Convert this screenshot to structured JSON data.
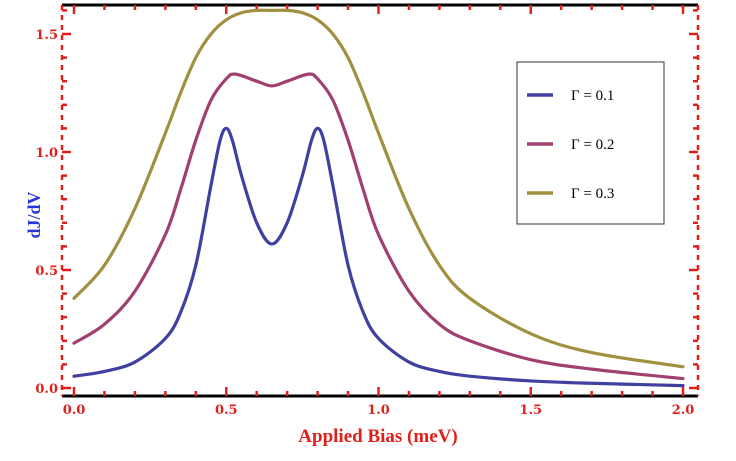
{
  "chart_data": {
    "type": "line",
    "title": "",
    "xlabel": "Applied Bias  (meV)",
    "ylabel": "dJ/dV",
    "xlim": [
      0.0,
      2.0
    ],
    "ylim": [
      0.0,
      1.65
    ],
    "x_ticks": [
      "0.0",
      "0.5",
      "1.0",
      "1.5",
      "2.0"
    ],
    "y_ticks": [
      "0.0",
      "0.5",
      "1.0",
      "1.5"
    ],
    "legend_position": "top-right",
    "grid": false,
    "series": [
      {
        "name": "Γ  =  0.1",
        "color": "#4040a0",
        "x": [
          0.0,
          0.1,
          0.2,
          0.3,
          0.35,
          0.4,
          0.45,
          0.48,
          0.5,
          0.52,
          0.55,
          0.6,
          0.65,
          0.7,
          0.75,
          0.78,
          0.8,
          0.82,
          0.85,
          0.9,
          0.95,
          1.0,
          1.1,
          1.2,
          1.3,
          1.5,
          1.7,
          2.0
        ],
        "y": [
          0.05,
          0.07,
          0.11,
          0.21,
          0.32,
          0.52,
          0.86,
          1.05,
          1.1,
          1.05,
          0.9,
          0.7,
          0.61,
          0.7,
          0.9,
          1.05,
          1.1,
          1.05,
          0.86,
          0.52,
          0.32,
          0.21,
          0.11,
          0.07,
          0.05,
          0.03,
          0.02,
          0.01
        ]
      },
      {
        "name": "Γ  =  0.2",
        "color": "#a04070",
        "x": [
          0.0,
          0.1,
          0.2,
          0.3,
          0.35,
          0.4,
          0.45,
          0.5,
          0.53,
          0.6,
          0.65,
          0.7,
          0.77,
          0.8,
          0.85,
          0.9,
          0.95,
          1.0,
          1.1,
          1.2,
          1.3,
          1.5,
          1.7,
          2.0
        ],
        "y": [
          0.19,
          0.27,
          0.41,
          0.65,
          0.84,
          1.05,
          1.22,
          1.31,
          1.33,
          1.3,
          1.28,
          1.3,
          1.33,
          1.31,
          1.22,
          1.05,
          0.84,
          0.65,
          0.41,
          0.27,
          0.2,
          0.12,
          0.08,
          0.04
        ]
      },
      {
        "name": "Γ  =  0.3",
        "color": "#a09040",
        "x": [
          0.0,
          0.1,
          0.2,
          0.3,
          0.35,
          0.4,
          0.45,
          0.5,
          0.55,
          0.6,
          0.65,
          0.7,
          0.75,
          0.8,
          0.85,
          0.9,
          0.95,
          1.0,
          1.1,
          1.2,
          1.3,
          1.5,
          1.7,
          2.0
        ],
        "y": [
          0.38,
          0.52,
          0.76,
          1.08,
          1.25,
          1.4,
          1.5,
          1.56,
          1.59,
          1.6,
          1.6,
          1.6,
          1.59,
          1.56,
          1.5,
          1.4,
          1.25,
          1.08,
          0.76,
          0.52,
          0.38,
          0.23,
          0.15,
          0.09
        ]
      }
    ]
  }
}
